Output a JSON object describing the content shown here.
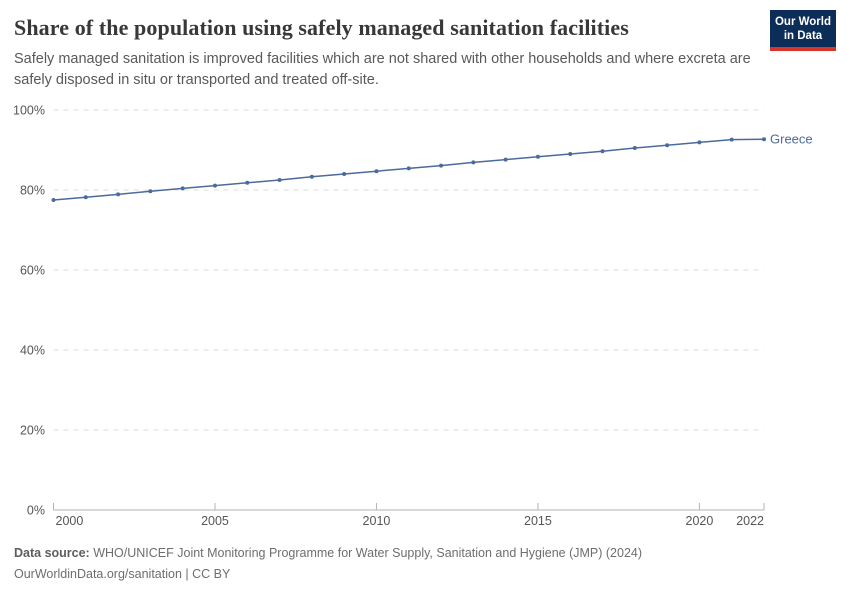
{
  "header": {
    "title": "Share of the population using safely managed sanitation facilities",
    "subtitle": "Safely managed sanitation is improved facilities which are not shared with other households and where excreta are safely disposed in situ or transported and treated off-site."
  },
  "logo": {
    "line1": "Our World",
    "line2": "in Data",
    "bg_color": "#0d2d59",
    "stripe_color": "#d8352a",
    "text_color": "#ffffff"
  },
  "chart_data": {
    "type": "line",
    "title": "Share of the population using safely managed sanitation facilities",
    "xlabel": "",
    "ylabel": "",
    "x": [
      2000,
      2001,
      2002,
      2003,
      2004,
      2005,
      2006,
      2007,
      2008,
      2009,
      2010,
      2011,
      2012,
      2013,
      2014,
      2015,
      2016,
      2017,
      2018,
      2019,
      2020,
      2021,
      2022
    ],
    "series": [
      {
        "name": "Greece",
        "color": "#4c6a9c",
        "values": [
          77.5,
          78.2,
          78.9,
          79.7,
          80.4,
          81.1,
          81.8,
          82.5,
          83.3,
          84.0,
          84.7,
          85.4,
          86.1,
          86.9,
          87.6,
          88.3,
          89.0,
          89.7,
          90.5,
          91.2,
          91.9,
          92.6,
          92.7
        ]
      }
    ],
    "xlim": [
      2000,
      2022
    ],
    "ylim": [
      0,
      100
    ],
    "xticks": [
      2000,
      2005,
      2010,
      2015,
      2020,
      2022
    ],
    "yticks": [
      0,
      20,
      40,
      60,
      80,
      100
    ],
    "ytick_suffix": "%",
    "grid": "horizontal-dashed",
    "legend": "line-end-label",
    "grid_color": "#dcdcdc",
    "axis_color": "#b3b3b3",
    "tick_label_color": "#565656"
  },
  "footer": {
    "datasource_label": "Data source:",
    "datasource_value": "WHO/UNICEF Joint Monitoring Programme for Water Supply, Sanitation and Hygiene (JMP) (2024)",
    "url": "OurWorldinData.org/sanitation",
    "separator": "|",
    "license": "CC BY"
  }
}
